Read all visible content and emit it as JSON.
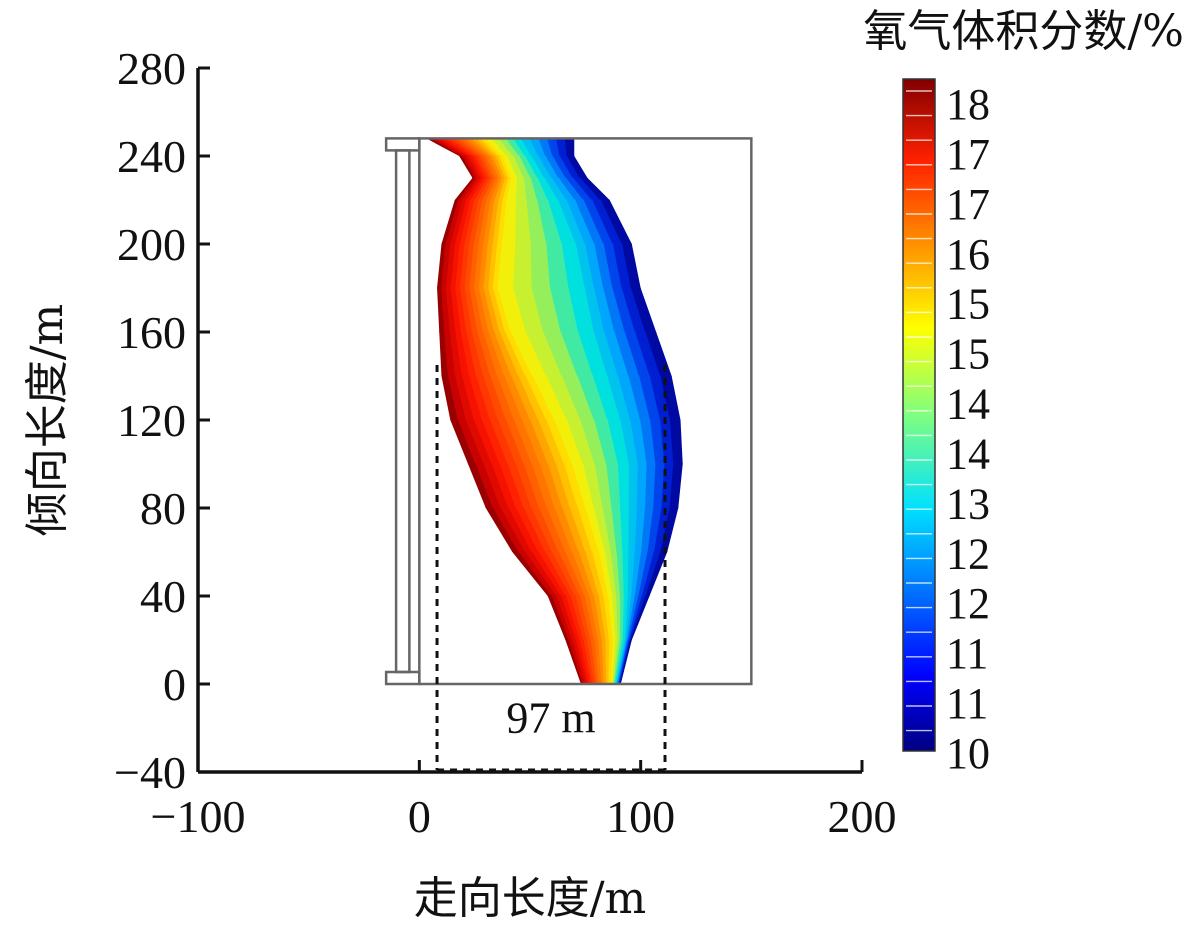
{
  "chart_data": {
    "type": "heatmap",
    "title": "",
    "xlabel": "走向长度/m",
    "ylabel": "倾向长度/m",
    "xlim": [
      -100,
      200
    ],
    "ylim": [
      -40,
      280
    ],
    "x_ticks": [
      "−100",
      "0",
      "100",
      "200"
    ],
    "x_tick_values": [
      -100,
      0,
      100,
      200
    ],
    "y_ticks": [
      "280",
      "240",
      "200",
      "160",
      "120",
      "80",
      "40",
      "0",
      "−40"
    ],
    "y_tick_values": [
      280,
      240,
      200,
      160,
      120,
      80,
      40,
      0,
      -40
    ],
    "colorbar": {
      "title": "氧气体积分数/%",
      "labels": [
        "18",
        "17",
        "17",
        "16",
        "15",
        "15",
        "14",
        "14",
        "13",
        "12",
        "12",
        "11",
        "11",
        "10"
      ],
      "range": [
        10,
        18
      ],
      "colormap": "jet"
    },
    "goaf_region": {
      "x": [
        0,
        150
      ],
      "y": [
        0,
        248
      ]
    },
    "annotation": {
      "text": "97 m",
      "x_start": 8,
      "x_end": 111
    },
    "oxygen_field": {
      "description_units": "x in m, y in m; columns: y, left_edge_x, yellow_x, cyan_x, right_edge_x",
      "rows": [
        [
          248,
          3,
          30,
          45,
          70
        ],
        [
          240,
          18,
          38,
          50,
          70
        ],
        [
          230,
          24,
          42,
          56,
          76
        ],
        [
          220,
          16,
          40,
          62,
          86
        ],
        [
          200,
          10,
          38,
          70,
          96
        ],
        [
          180,
          8,
          36,
          74,
          100
        ],
        [
          160,
          9,
          42,
          78,
          107
        ],
        [
          140,
          10,
          52,
          84,
          114
        ],
        [
          120,
          14,
          62,
          90,
          118
        ],
        [
          100,
          22,
          70,
          94,
          119
        ],
        [
          80,
          30,
          76,
          94,
          117
        ],
        [
          60,
          42,
          82,
          94,
          112
        ],
        [
          40,
          58,
          86,
          94,
          104
        ],
        [
          20,
          66,
          88,
          93,
          96
        ],
        [
          0,
          73,
          87,
          89,
          91
        ]
      ]
    }
  }
}
